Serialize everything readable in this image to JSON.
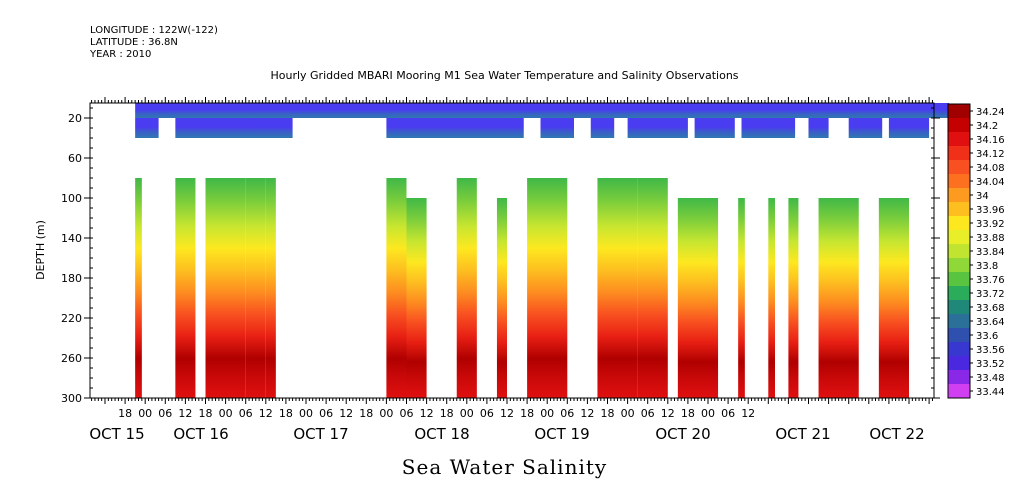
{
  "header": {
    "longitude": "LONGITUDE : 122W(-122)",
    "latitude": "LATITUDE : 36.8N",
    "year": "YEAR : 2010"
  },
  "chart_data": {
    "type": "heatmap",
    "title": "Hourly Gridded MBARI Mooring M1 Sea Water Temperature and Salinity Observations",
    "xlabel": "Sea Water Salinity",
    "ylabel": "DEPTH (m)",
    "ylim": [
      300,
      0
    ],
    "y_ticks": [
      20,
      60,
      100,
      140,
      180,
      220,
      260,
      300
    ],
    "x_tick_hours": [
      "18",
      "00",
      "06",
      "12",
      "18",
      "00",
      "06",
      "12",
      "18",
      "00",
      "06",
      "12",
      "18",
      "00",
      "06",
      "12",
      "18",
      "00",
      "06",
      "12",
      "18",
      "00",
      "06",
      "12",
      "18",
      "00",
      "06",
      "12",
      "18",
      "00",
      "06",
      "12"
    ],
    "x_day_labels": [
      "OCT 15",
      "OCT 16",
      "OCT 17",
      "OCT 18",
      "OCT 19",
      "OCT 20",
      "OCT 21",
      "OCT 22"
    ],
    "colorbar": {
      "labels": [
        "34.24",
        "34.2",
        "34.16",
        "34.12",
        "34.08",
        "34.04",
        "34",
        "33.96",
        "33.92",
        "33.88",
        "33.84",
        "33.8",
        "33.76",
        "33.72",
        "33.68",
        "33.64",
        "33.6",
        "33.56",
        "33.52",
        "33.48",
        "33.44"
      ],
      "colors": [
        "#a00000",
        "#c40000",
        "#e01010",
        "#f03018",
        "#f85020",
        "#fc7020",
        "#fd9a20",
        "#fdbe20",
        "#fde820",
        "#e8ef28",
        "#c0e430",
        "#90d838",
        "#58c440",
        "#2aac5a",
        "#208878",
        "#2a7098",
        "#3050b0",
        "#3838d0",
        "#4a28e0",
        "#8a28e8",
        "#d040f0"
      ]
    },
    "depth_profile": [
      {
        "depth": 20,
        "salinity": 33.57
      },
      {
        "depth": 30,
        "salinity": 33.6
      },
      {
        "depth": 80,
        "salinity": 33.78
      },
      {
        "depth": 100,
        "salinity": 33.82
      },
      {
        "depth": 140,
        "salinity": 33.96
      },
      {
        "depth": 180,
        "salinity": 34.06
      },
      {
        "depth": 220,
        "salinity": 34.14
      },
      {
        "depth": 260,
        "salinity": 34.22
      },
      {
        "depth": 300,
        "salinity": 34.18
      }
    ]
  }
}
